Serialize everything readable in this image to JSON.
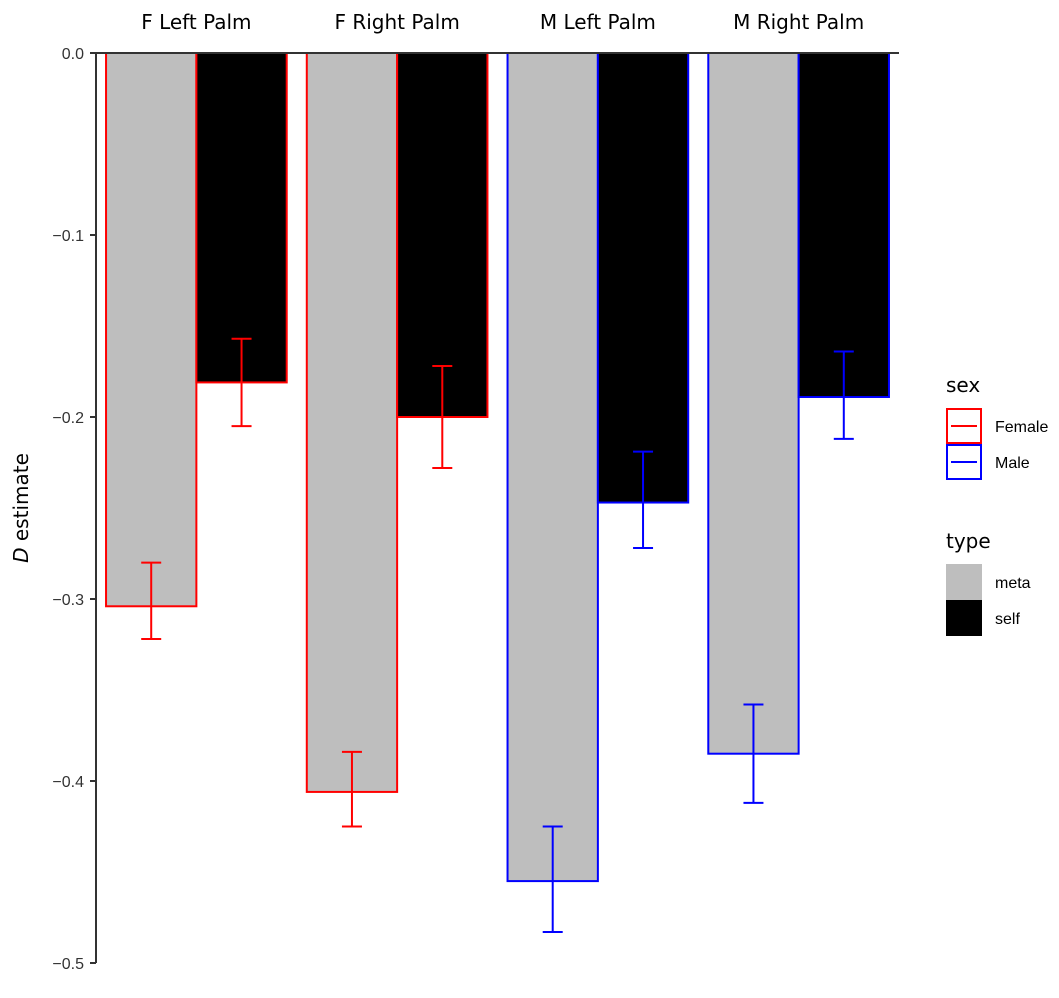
{
  "chart_data": {
    "type": "bar",
    "categories": [
      "F Left Palm",
      "F Right Palm",
      "M Left Palm",
      "M Right Palm"
    ],
    "category_sex": [
      "Female",
      "Female",
      "Male",
      "Male"
    ],
    "series": [
      {
        "name": "meta",
        "values": [
          -0.304,
          -0.406,
          -0.455,
          -0.385
        ],
        "ci_low": [
          -0.322,
          -0.425,
          -0.483,
          -0.412
        ],
        "ci_high": [
          -0.28,
          -0.384,
          -0.425,
          -0.358
        ]
      },
      {
        "name": "self",
        "values": [
          -0.181,
          -0.2,
          -0.247,
          -0.189
        ],
        "ci_low": [
          -0.205,
          -0.228,
          -0.272,
          -0.212
        ],
        "ci_high": [
          -0.157,
          -0.172,
          -0.219,
          -0.164
        ]
      }
    ],
    "ylabel_italic": "D",
    "ylabel_rest": " estimate",
    "ylim": [
      -0.5,
      0.0
    ],
    "yticks": [
      0.0,
      -0.1,
      -0.2,
      -0.3,
      -0.4,
      -0.5
    ],
    "ytick_labels": [
      "0.0",
      "−0.1",
      "−0.2",
      "−0.3",
      "−0.4",
      "−0.5"
    ],
    "grid": false,
    "legends": [
      {
        "title": "sex",
        "items": [
          {
            "label": "Female",
            "color": "#ff0000"
          },
          {
            "label": "Male",
            "color": "#0000ff"
          }
        ]
      },
      {
        "title": "type",
        "items": [
          {
            "label": "meta",
            "color": "#bebebe"
          },
          {
            "label": "self",
            "color": "#000000"
          }
        ]
      }
    ],
    "legend_position": "right"
  }
}
